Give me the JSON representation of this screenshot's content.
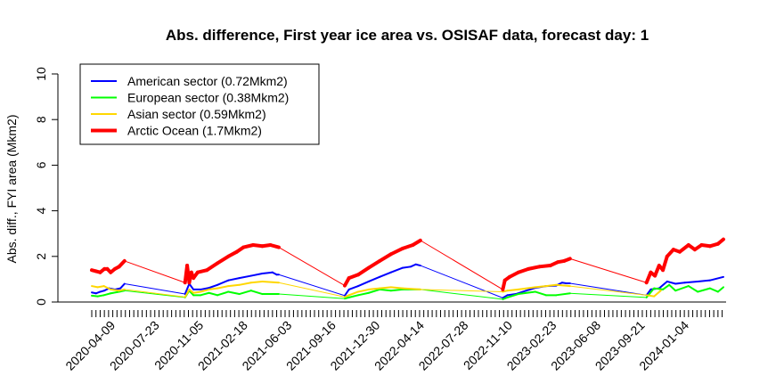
{
  "chart_data": {
    "type": "line",
    "title": "Abs. difference, First year ice area vs. OSISAF data, forecast day: 1",
    "xlabel": "",
    "ylabel": "Abs. diff., FYI area (Mkm2)",
    "ylim": [
      0,
      10
    ],
    "yticks": [
      0,
      2,
      4,
      6,
      8,
      10
    ],
    "xlim": [
      "2020-02-20",
      "2024-04-02"
    ],
    "xtick_labels": [
      "2020-04-09",
      "2020-07-23",
      "2020-11-05",
      "2021-02-18",
      "2021-06-03",
      "2021-09-16",
      "2021-12-30",
      "2022-04-14",
      "2022-07-28",
      "2022-11-10",
      "2023-02-23",
      "2023-06-08",
      "2023-09-21",
      "2024-01-04"
    ],
    "grid": false,
    "legend_position": "top-left",
    "series": [
      {
        "name": "American sector (0.72Mkm2)",
        "color": "#0000ff",
        "line_width": 2,
        "points": [
          [
            "2020-02-20",
            0.42
          ],
          [
            "2020-03-01",
            0.38
          ],
          [
            "2020-03-11",
            0.45
          ],
          [
            "2020-03-21",
            0.5
          ],
          [
            "2020-04-01",
            0.6
          ],
          [
            "2020-04-15",
            0.55
          ],
          [
            "2020-04-28",
            0.6
          ],
          [
            "2020-05-08",
            0.8
          ],
          [
            "2020-09-29",
            0.35
          ],
          [
            "2020-10-09",
            0.8
          ],
          [
            "2020-10-19",
            0.55
          ],
          [
            "2020-11-05",
            0.55
          ],
          [
            "2020-11-25",
            0.62
          ],
          [
            "2020-12-15",
            0.75
          ],
          [
            "2021-01-10",
            0.95
          ],
          [
            "2021-02-05",
            1.05
          ],
          [
            "2021-03-05",
            1.15
          ],
          [
            "2021-04-01",
            1.25
          ],
          [
            "2021-04-25",
            1.3
          ],
          [
            "2021-05-05",
            1.2
          ],
          [
            "2021-05-10",
            1.2
          ],
          [
            "2021-10-14",
            0.28
          ],
          [
            "2021-10-24",
            0.55
          ],
          [
            "2021-11-15",
            0.7
          ],
          [
            "2021-12-10",
            0.9
          ],
          [
            "2022-01-05",
            1.1
          ],
          [
            "2022-02-01",
            1.3
          ],
          [
            "2022-03-01",
            1.5
          ],
          [
            "2022-03-20",
            1.55
          ],
          [
            "2022-04-01",
            1.65
          ],
          [
            "2022-04-12",
            1.6
          ],
          [
            "2022-10-25",
            0.18
          ],
          [
            "2022-11-05",
            0.3
          ],
          [
            "2022-11-25",
            0.35
          ],
          [
            "2022-12-20",
            0.5
          ],
          [
            "2023-01-10",
            0.62
          ],
          [
            "2023-02-05",
            0.7
          ],
          [
            "2023-03-01",
            0.72
          ],
          [
            "2023-03-15",
            0.85
          ],
          [
            "2023-03-25",
            0.82
          ],
          [
            "2023-04-03",
            0.82
          ],
          [
            "2023-10-02",
            0.3
          ],
          [
            "2023-10-12",
            0.55
          ],
          [
            "2023-11-01",
            0.6
          ],
          [
            "2023-11-20",
            0.9
          ],
          [
            "2023-12-10",
            0.8
          ],
          [
            "2024-01-01",
            0.85
          ],
          [
            "2024-02-01",
            0.9
          ],
          [
            "2024-03-01",
            0.95
          ],
          [
            "2024-04-02",
            1.1
          ]
        ]
      },
      {
        "name": "European sector (0.38Mkm2)",
        "color": "#00ff00",
        "line_width": 2,
        "points": [
          [
            "2020-02-20",
            0.28
          ],
          [
            "2020-03-05",
            0.25
          ],
          [
            "2020-03-20",
            0.3
          ],
          [
            "2020-04-05",
            0.38
          ],
          [
            "2020-04-25",
            0.45
          ],
          [
            "2020-05-08",
            0.5
          ],
          [
            "2020-09-29",
            0.2
          ],
          [
            "2020-10-09",
            0.5
          ],
          [
            "2020-10-19",
            0.3
          ],
          [
            "2020-11-05",
            0.3
          ],
          [
            "2020-11-25",
            0.4
          ],
          [
            "2020-12-15",
            0.3
          ],
          [
            "2021-01-10",
            0.45
          ],
          [
            "2021-02-05",
            0.35
          ],
          [
            "2021-03-05",
            0.5
          ],
          [
            "2021-04-01",
            0.35
          ],
          [
            "2021-05-10",
            0.35
          ],
          [
            "2021-10-14",
            0.15
          ],
          [
            "2021-10-24",
            0.2
          ],
          [
            "2021-11-15",
            0.3
          ],
          [
            "2021-12-10",
            0.4
          ],
          [
            "2022-01-05",
            0.55
          ],
          [
            "2022-02-01",
            0.5
          ],
          [
            "2022-03-01",
            0.55
          ],
          [
            "2022-04-12",
            0.55
          ],
          [
            "2022-10-25",
            0.12
          ],
          [
            "2022-11-05",
            0.2
          ],
          [
            "2022-12-01",
            0.35
          ],
          [
            "2023-01-10",
            0.45
          ],
          [
            "2023-02-05",
            0.3
          ],
          [
            "2023-03-01",
            0.3
          ],
          [
            "2023-04-03",
            0.38
          ],
          [
            "2023-10-02",
            0.2
          ],
          [
            "2023-10-20",
            0.6
          ],
          [
            "2023-11-10",
            0.55
          ],
          [
            "2023-11-25",
            0.75
          ],
          [
            "2023-12-10",
            0.5
          ],
          [
            "2024-01-10",
            0.7
          ],
          [
            "2024-02-01",
            0.45
          ],
          [
            "2024-03-01",
            0.6
          ],
          [
            "2024-03-20",
            0.45
          ],
          [
            "2024-04-02",
            0.65
          ]
        ]
      },
      {
        "name": "Asian sector (0.59Mkm2)",
        "color": "#ffd700",
        "line_width": 2,
        "points": [
          [
            "2020-02-20",
            0.7
          ],
          [
            "2020-03-05",
            0.65
          ],
          [
            "2020-03-20",
            0.7
          ],
          [
            "2020-04-05",
            0.55
          ],
          [
            "2020-04-25",
            0.5
          ],
          [
            "2020-05-08",
            0.55
          ],
          [
            "2020-09-29",
            0.22
          ],
          [
            "2020-10-09",
            0.55
          ],
          [
            "2020-10-19",
            0.4
          ],
          [
            "2020-11-05",
            0.45
          ],
          [
            "2020-11-25",
            0.55
          ],
          [
            "2020-12-15",
            0.6
          ],
          [
            "2021-01-10",
            0.7
          ],
          [
            "2021-02-05",
            0.75
          ],
          [
            "2021-03-05",
            0.85
          ],
          [
            "2021-04-01",
            0.9
          ],
          [
            "2021-05-10",
            0.85
          ],
          [
            "2021-10-14",
            0.22
          ],
          [
            "2021-10-24",
            0.3
          ],
          [
            "2021-11-15",
            0.45
          ],
          [
            "2021-12-10",
            0.55
          ],
          [
            "2022-01-05",
            0.6
          ],
          [
            "2022-02-01",
            0.65
          ],
          [
            "2022-03-01",
            0.6
          ],
          [
            "2022-04-12",
            0.55
          ],
          [
            "2022-10-25",
            0.45
          ],
          [
            "2022-11-05",
            0.5
          ],
          [
            "2022-12-01",
            0.55
          ],
          [
            "2023-01-10",
            0.65
          ],
          [
            "2023-02-05",
            0.7
          ],
          [
            "2023-03-01",
            0.75
          ],
          [
            "2023-04-03",
            0.7
          ],
          [
            "2023-10-02",
            0.3
          ],
          [
            "2023-10-20",
            0.25
          ],
          [
            "2023-11-05",
            0.5
          ]
        ]
      },
      {
        "name": "Arctic Ocean (1.7Mkm2)",
        "color": "#ff0000",
        "line_width": 4,
        "points": [
          [
            "2020-02-20",
            1.4
          ],
          [
            "2020-03-01",
            1.35
          ],
          [
            "2020-03-11",
            1.3
          ],
          [
            "2020-03-21",
            1.45
          ],
          [
            "2020-03-28",
            1.45
          ],
          [
            "2020-04-05",
            1.3
          ],
          [
            "2020-04-15",
            1.45
          ],
          [
            "2020-04-25",
            1.55
          ],
          [
            "2020-05-08",
            1.8
          ],
          [
            "2020-09-29",
            0.85
          ],
          [
            "2020-10-04",
            1.6
          ],
          [
            "2020-10-09",
            0.85
          ],
          [
            "2020-10-14",
            1.3
          ],
          [
            "2020-10-19",
            1.05
          ],
          [
            "2020-10-29",
            1.3
          ],
          [
            "2020-11-20",
            1.4
          ],
          [
            "2020-12-15",
            1.7
          ],
          [
            "2021-01-10",
            2.0
          ],
          [
            "2021-01-30",
            2.2
          ],
          [
            "2021-02-15",
            2.4
          ],
          [
            "2021-03-10",
            2.5
          ],
          [
            "2021-04-01",
            2.45
          ],
          [
            "2021-04-20",
            2.5
          ],
          [
            "2021-05-10",
            2.4
          ],
          [
            "2021-10-14",
            0.72
          ],
          [
            "2021-10-24",
            1.05
          ],
          [
            "2021-11-15",
            1.2
          ],
          [
            "2021-12-10",
            1.5
          ],
          [
            "2022-01-05",
            1.8
          ],
          [
            "2022-02-01",
            2.1
          ],
          [
            "2022-03-01",
            2.35
          ],
          [
            "2022-03-25",
            2.5
          ],
          [
            "2022-04-12",
            2.7
          ],
          [
            "2022-10-25",
            0.55
          ],
          [
            "2022-10-30",
            0.95
          ],
          [
            "2022-11-10",
            1.1
          ],
          [
            "2022-12-01",
            1.3
          ],
          [
            "2022-12-25",
            1.45
          ],
          [
            "2023-01-20",
            1.55
          ],
          [
            "2023-02-15",
            1.6
          ],
          [
            "2023-03-05",
            1.75
          ],
          [
            "2023-03-20",
            1.8
          ],
          [
            "2023-04-03",
            1.9
          ],
          [
            "2023-10-02",
            0.85
          ],
          [
            "2023-10-12",
            1.3
          ],
          [
            "2023-10-22",
            1.15
          ],
          [
            "2023-11-01",
            1.6
          ],
          [
            "2023-11-10",
            1.4
          ],
          [
            "2023-11-20",
            2.0
          ],
          [
            "2023-12-05",
            2.3
          ],
          [
            "2023-12-20",
            2.2
          ],
          [
            "2024-01-10",
            2.5
          ],
          [
            "2024-01-25",
            2.3
          ],
          [
            "2024-02-10",
            2.5
          ],
          [
            "2024-03-01",
            2.45
          ],
          [
            "2024-03-20",
            2.55
          ],
          [
            "2024-04-02",
            2.75
          ]
        ]
      }
    ]
  }
}
